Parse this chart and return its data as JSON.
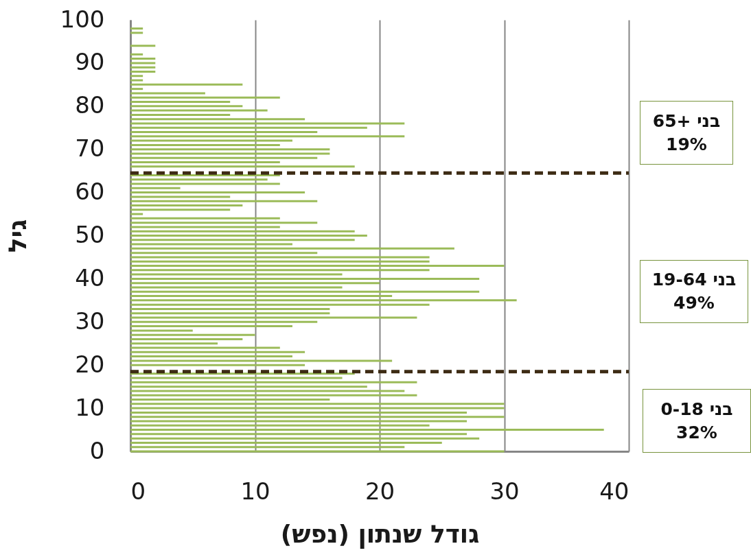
{
  "chart_data": {
    "type": "bar",
    "orientation": "horizontal",
    "color": "#9bbb59",
    "x": [
      0,
      1,
      2,
      3,
      4,
      5,
      6,
      7,
      8,
      9,
      10,
      11,
      12,
      13,
      14,
      15,
      16,
      17,
      18,
      19,
      20,
      21,
      22,
      23,
      24,
      25,
      26,
      27,
      28,
      29,
      30,
      31,
      32,
      33,
      34,
      35,
      36,
      37,
      38,
      39,
      40,
      41,
      42,
      43,
      44,
      45,
      46,
      47,
      48,
      49,
      50,
      51,
      52,
      53,
      54,
      55,
      56,
      57,
      58,
      59,
      60,
      61,
      62,
      63,
      64,
      65,
      66,
      67,
      68,
      69,
      70,
      71,
      72,
      73,
      74,
      75,
      76,
      77,
      78,
      79,
      80,
      81,
      82,
      83,
      84,
      85,
      86,
      87,
      88,
      89,
      90,
      91,
      92,
      93,
      94,
      95,
      96,
      97,
      98
    ],
    "values": [
      30,
      22,
      25,
      28,
      27,
      38,
      24,
      27,
      30,
      27,
      30,
      30,
      16,
      23,
      22,
      19,
      23,
      17,
      18,
      null,
      14,
      21,
      13,
      14,
      12,
      7,
      9,
      10,
      5,
      13,
      15,
      23,
      16,
      16,
      24,
      31,
      21,
      28,
      17,
      20,
      28,
      17,
      24,
      30,
      24,
      24,
      15,
      26,
      13,
      18,
      19,
      18,
      12,
      15,
      12,
      1,
      8,
      9,
      15,
      8,
      14,
      4,
      12,
      11,
      12,
      null,
      18,
      12,
      15,
      16,
      16,
      12,
      13,
      22,
      15,
      19,
      22,
      14,
      8,
      11,
      9,
      8,
      12,
      6,
      1,
      9,
      1,
      1,
      2,
      2,
      2,
      2,
      1,
      0,
      2,
      0,
      0,
      1,
      1
    ],
    "xlabel": "גודל שנתון (נפש)",
    "ylabel": "גיל",
    "xlim": [
      0,
      40
    ],
    "xticks": [
      0,
      10,
      20,
      30,
      40
    ],
    "ylim": [
      0,
      100
    ],
    "yticks": [
      0,
      10,
      20,
      30,
      40,
      50,
      60,
      70,
      80,
      90,
      100
    ],
    "grid": "x",
    "ref_lines": [
      {
        "axis": "y",
        "value": 18.5,
        "color": "#3d2b14",
        "line_style": "dashed"
      },
      {
        "axis": "y",
        "value": 64.5,
        "color": "#3d2b14",
        "line_style": "dashed"
      }
    ],
    "annotations": [
      "בני +65\n19%",
      "בני 19-64\n49%",
      "בני 0-18\n32%"
    ]
  }
}
